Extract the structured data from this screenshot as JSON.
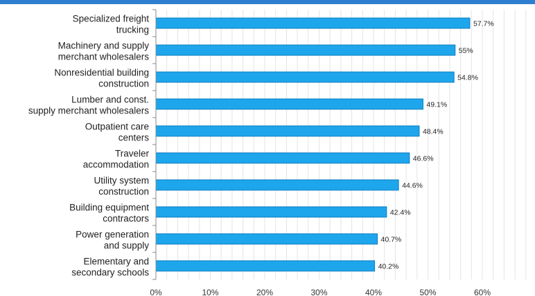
{
  "chart_data": {
    "type": "bar",
    "orientation": "horizontal",
    "categories": [
      [
        "Specialized freight",
        "trucking"
      ],
      [
        "Machinery and supply",
        "merchant wholesalers"
      ],
      [
        "Nonresidential building",
        "construction"
      ],
      [
        "Lumber and const.",
        "supply merchant wholesalers"
      ],
      [
        "Outpatient care",
        "centers"
      ],
      [
        "Traveler",
        "accommodation"
      ],
      [
        "Utility system",
        "construction"
      ],
      [
        "Building equipment",
        "contractors"
      ],
      [
        "Power generation",
        "and supply"
      ],
      [
        "Elementary and",
        "secondary schools"
      ]
    ],
    "values": [
      57.7,
      55,
      54.8,
      49.1,
      48.4,
      46.6,
      44.6,
      42.4,
      40.7,
      40.2
    ],
    "value_labels": [
      "57.7%",
      "55%",
      "54.8%",
      "49.1%",
      "48.4%",
      "46.6%",
      "44.6%",
      "42.4%",
      "40.7%",
      "40.2%"
    ],
    "x_ticks": [
      "0%",
      "10%",
      "20%",
      "30%",
      "40%",
      "50%",
      "60%"
    ],
    "xlim": [
      0,
      68
    ],
    "grid": "vertical",
    "colors": {
      "bar": "#1ea6ec",
      "bar_edge": "#0b7cc0",
      "grid": "#e4e4e4",
      "header": "#2f7fd0"
    }
  }
}
